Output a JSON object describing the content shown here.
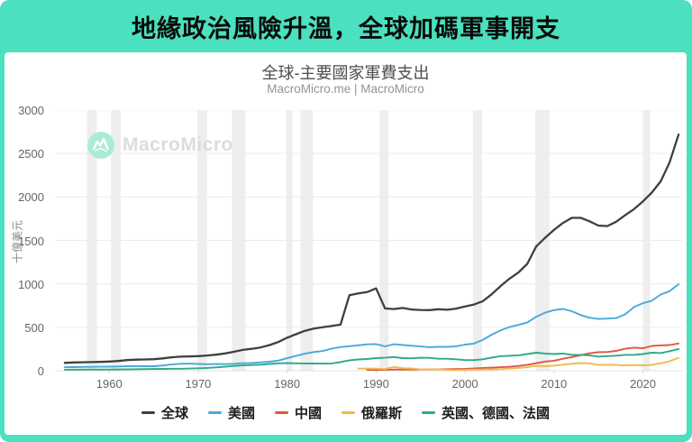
{
  "header": {
    "title": "地緣政治風險升溫，全球加碼軍事開支"
  },
  "chart": {
    "title": "全球-主要國家軍費支出",
    "subtitle": "MacroMicro.me | MacroMicro",
    "watermark_text": "MacroMicro",
    "ylabel": "十億美元"
  },
  "colors": {
    "frame_teal": "#4be0bf",
    "recession_band": "#eeeeee",
    "gridline": "#ececec",
    "baseline": "#e0e0e0",
    "watermark_circle": "#abebd8"
  },
  "chart_data": {
    "type": "line",
    "title": "全球-主要國家軍費支出",
    "subtitle": "MacroMicro.me | MacroMicro",
    "xlabel": "",
    "ylabel": "十億美元",
    "unit": "USD billions",
    "xlim": [
      1954,
      2024.4
    ],
    "ylim": [
      0,
      3000
    ],
    "x_ticks": [
      1960,
      1970,
      1980,
      1990,
      2000,
      2010,
      2020
    ],
    "y_ticks": [
      0,
      500,
      1000,
      1500,
      2000,
      2500,
      3000
    ],
    "grid": "horizontal",
    "legend_position": "bottom",
    "recession_bands": [
      [
        1957.5,
        1958.6
      ],
      [
        1960.2,
        1961.3
      ],
      [
        1969.9,
        1971.0
      ],
      [
        1973.8,
        1975.3
      ],
      [
        1979.9,
        1980.6
      ],
      [
        1981.5,
        1982.9
      ],
      [
        1990.4,
        1991.4
      ],
      [
        2000.9,
        2001.9
      ],
      [
        2007.9,
        2009.5
      ],
      [
        2020.0,
        2020.8
      ]
    ],
    "series": [
      {
        "id": "global",
        "name": "全球",
        "color": "#3f3f3f",
        "width": 2.3,
        "start": 1955,
        "values": [
          90,
          95,
          98,
          100,
          102,
          106,
          112,
          122,
          128,
          130,
          133,
          142,
          155,
          162,
          165,
          168,
          175,
          185,
          198,
          218,
          240,
          252,
          268,
          295,
          330,
          380,
          420,
          460,
          485,
          500,
          515,
          530,
          870,
          890,
          905,
          948,
          717,
          710,
          722,
          705,
          700,
          698,
          708,
          702,
          715,
          740,
          762,
          800,
          880,
          975,
          1060,
          1130,
          1230,
          1430,
          1530,
          1620,
          1700,
          1760,
          1760,
          1720,
          1670,
          1665,
          1715,
          1790,
          1860,
          1950,
          2050,
          2180,
          2400,
          2718
        ]
      },
      {
        "id": "us",
        "name": "美國",
        "color": "#47a9dc",
        "width": 1.9,
        "start": 1955,
        "values": [
          40,
          42,
          44,
          45,
          46,
          47,
          49,
          52,
          53,
          52,
          52,
          60,
          72,
          80,
          82,
          78,
          75,
          77,
          76,
          80,
          87,
          89,
          97,
          104,
          116,
          144,
          170,
          196,
          215,
          227,
          254,
          273,
          282,
          293,
          304,
          306,
          280,
          305,
          297,
          288,
          279,
          271,
          276,
          274,
          281,
          301,
          312,
          356,
          415,
          464,
          503,
          527,
          556,
          621,
          668,
          698,
          711,
          685,
          640,
          610,
          596,
          600,
          606,
          649,
          734,
          778,
          806,
          877,
          916,
          997
        ]
      },
      {
        "id": "china",
        "name": "中國",
        "color": "#e05743",
        "width": 1.9,
        "start": 1989,
        "values": [
          10,
          10,
          11,
          13,
          13,
          13,
          13,
          15,
          16,
          18,
          20,
          22,
          27,
          32,
          35,
          40,
          46,
          55,
          68,
          86,
          106,
          115,
          138,
          157,
          179,
          201,
          214,
          216,
          228,
          253,
          266,
          258,
          285,
          292,
          296,
          314
        ]
      },
      {
        "id": "russia",
        "name": "俄羅斯",
        "color": "#eebb4b",
        "width": 1.9,
        "start": 1988,
        "values": [
          25,
          25,
          24,
          20,
          44,
          29,
          26,
          15,
          14,
          15,
          9,
          8,
          9,
          12,
          14,
          16,
          19,
          26,
          32,
          41,
          56,
          52,
          59,
          70,
          81,
          88,
          85,
          66,
          69,
          66,
          61,
          65,
          62,
          66,
          86,
          109,
          149
        ]
      },
      {
        "id": "uk-de-fr",
        "name": "英國、德國、法國",
        "color": "#2ca98b",
        "width": 1.9,
        "start": 1955,
        "values": [
          12,
          12,
          13,
          13,
          13,
          14,
          15,
          17,
          18,
          19,
          20,
          21,
          23,
          23,
          25,
          28,
          32,
          38,
          46,
          55,
          62,
          65,
          70,
          78,
          85,
          88,
          85,
          84,
          83,
          82,
          84,
          100,
          120,
          130,
          135,
          145,
          150,
          158,
          145,
          143,
          150,
          148,
          138,
          138,
          132,
          122,
          122,
          132,
          152,
          168,
          172,
          178,
          192,
          208,
          198,
          192,
          198,
          183,
          183,
          178,
          163,
          168,
          173,
          183,
          183,
          192,
          208,
          203,
          225,
          250
        ]
      }
    ]
  }
}
